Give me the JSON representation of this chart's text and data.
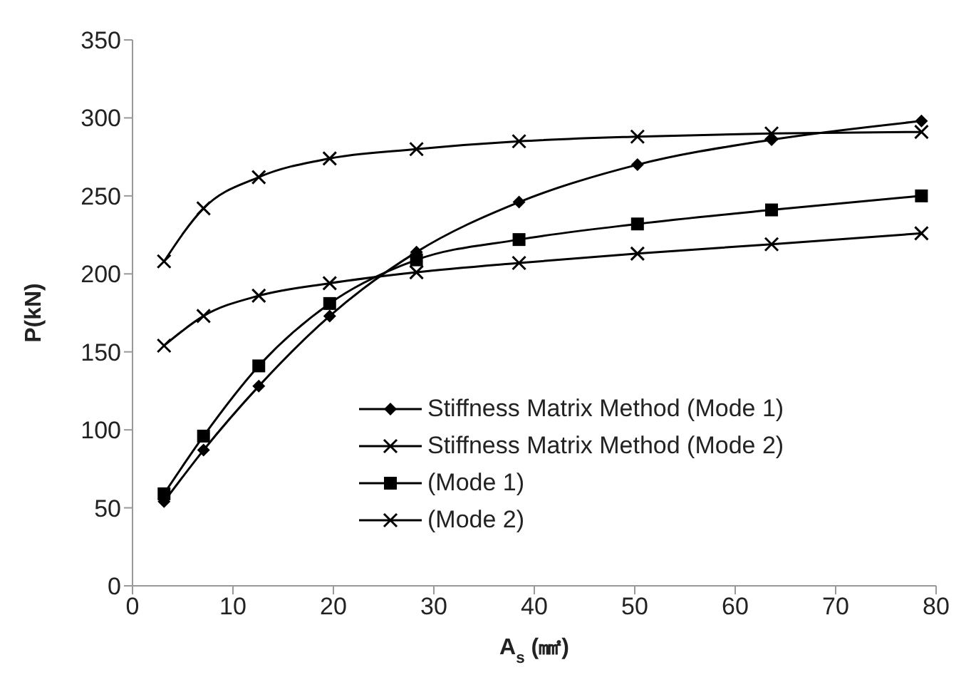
{
  "chart_data": {
    "type": "line",
    "xlabel": "A$_{s}$ (㎟)",
    "ylabel": "P(kN)",
    "xlim": [
      0,
      80
    ],
    "xticks": [
      0,
      10,
      20,
      30,
      40,
      50,
      60,
      70,
      80
    ],
    "ylim": [
      0,
      350
    ],
    "yticks": [
      0,
      50,
      100,
      150,
      200,
      250,
      300,
      350
    ],
    "grid": false,
    "legend": "bottom right",
    "x": [
      3.14,
      7.07,
      12.57,
      19.63,
      28.27,
      38.48,
      50.27,
      63.62,
      78.54
    ],
    "series": [
      {
        "name": "Stiffness Matrix Method (Mode 1)",
        "color": "#000000",
        "marker": "diamond",
        "values": [
          54,
          87,
          128,
          173,
          214,
          246,
          270,
          286,
          298
        ]
      },
      {
        "name": "Stiffness Matrix Method (Mode 2)",
        "color": "#000000",
        "marker": "cross",
        "values": [
          208,
          242,
          262,
          274,
          280,
          285,
          288,
          290,
          291
        ]
      },
      {
        "name": "(Mode 1)",
        "color": "#000000",
        "marker": "square",
        "values": [
          59,
          96,
          141,
          181,
          209,
          222,
          232,
          241,
          250
        ]
      },
      {
        "name": "(Mode 2)",
        "color": "#000000",
        "marker": "cross",
        "values": [
          154,
          173,
          186,
          194,
          201,
          207,
          213,
          219,
          226
        ]
      }
    ]
  }
}
